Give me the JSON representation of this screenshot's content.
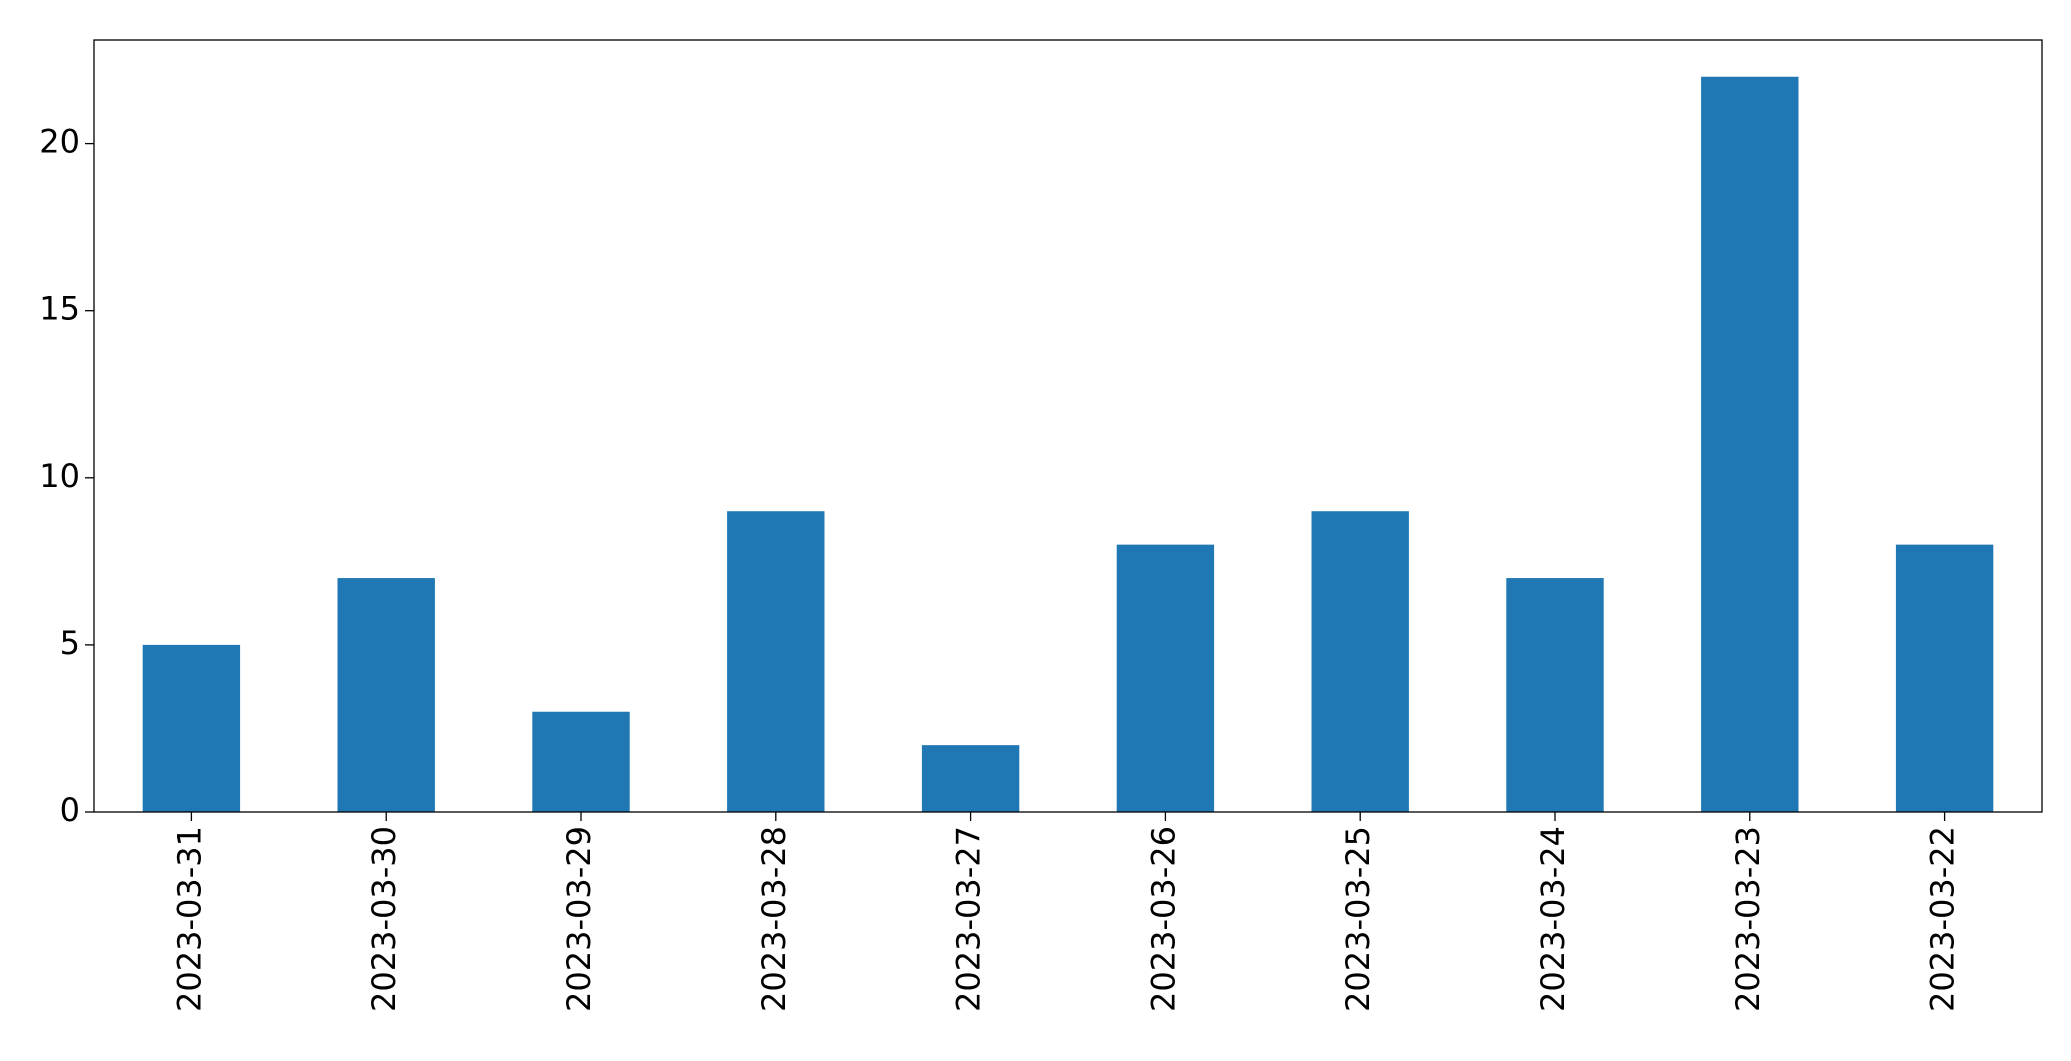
{
  "chart_data": {
    "type": "bar",
    "categories": [
      "2023-03-31",
      "2023-03-30",
      "2023-03-29",
      "2023-03-28",
      "2023-03-27",
      "2023-03-26",
      "2023-03-25",
      "2023-03-24",
      "2023-03-23",
      "2023-03-22"
    ],
    "values": [
      5,
      7,
      3,
      9,
      2,
      8,
      9,
      7,
      22,
      8
    ],
    "color": "#1f77b4",
    "ylim": [
      0,
      23.1
    ],
    "yticks": [
      0,
      5,
      10,
      15,
      20
    ],
    "grid": false
  }
}
